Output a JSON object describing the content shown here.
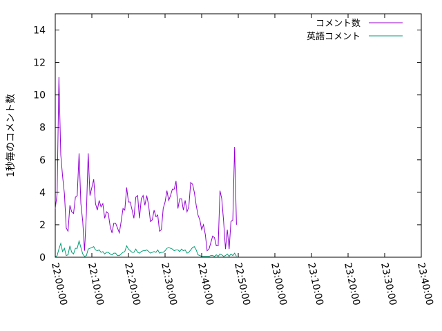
{
  "chart_data": {
    "type": "line",
    "title": "",
    "xlabel": "",
    "ylabel": "1秒毎のコメント数",
    "xlim": [
      "22:00:00",
      "23:40:00"
    ],
    "ylim": [
      0,
      15
    ],
    "grid": false,
    "legend_position": "top-right",
    "x_ticks": [
      "22:00:00",
      "22:10:00",
      "22:20:00",
      "22:30:00",
      "22:40:00",
      "22:50:00",
      "23:00:00",
      "23:10:00",
      "23:20:00",
      "23:30:00",
      "23:40:00"
    ],
    "y_ticks": [
      "0",
      "2",
      "4",
      "6",
      "8",
      "10",
      "12",
      "14"
    ],
    "series": [
      {
        "name": "コメント数",
        "color": "#9400d3",
        "points": [
          [
            "22:00:00",
            3.0
          ],
          [
            "22:00:30",
            3.9
          ],
          [
            "22:01:00",
            11.1
          ],
          [
            "22:01:30",
            6.3
          ],
          [
            "22:02:00",
            5.0
          ],
          [
            "22:02:30",
            3.9
          ],
          [
            "22:03:00",
            1.8
          ],
          [
            "22:03:30",
            1.6
          ],
          [
            "22:04:00",
            3.2
          ],
          [
            "22:04:30",
            2.8
          ],
          [
            "22:05:00",
            2.7
          ],
          [
            "22:05:30",
            3.7
          ],
          [
            "22:06:00",
            3.8
          ],
          [
            "22:06:30",
            6.4
          ],
          [
            "22:07:00",
            3.3
          ],
          [
            "22:07:30",
            2.2
          ],
          [
            "22:08:00",
            0.4
          ],
          [
            "22:08:30",
            2.7
          ],
          [
            "22:09:00",
            6.4
          ],
          [
            "22:09:30",
            3.8
          ],
          [
            "22:10:00",
            4.3
          ],
          [
            "22:10:30",
            4.8
          ],
          [
            "22:11:00",
            3.3
          ],
          [
            "22:11:30",
            2.9
          ],
          [
            "22:12:00",
            3.5
          ],
          [
            "22:12:30",
            3.1
          ],
          [
            "22:13:00",
            3.3
          ],
          [
            "22:13:30",
            2.4
          ],
          [
            "22:14:00",
            2.8
          ],
          [
            "22:14:30",
            2.7
          ],
          [
            "22:15:00",
            1.9
          ],
          [
            "22:15:30",
            1.5
          ],
          [
            "22:16:00",
            2.1
          ],
          [
            "22:16:30",
            2.1
          ],
          [
            "22:17:00",
            1.8
          ],
          [
            "22:17:30",
            1.5
          ],
          [
            "22:18:00",
            2.2
          ],
          [
            "22:18:30",
            3.0
          ],
          [
            "22:19:00",
            2.9
          ],
          [
            "22:19:30",
            4.3
          ],
          [
            "22:20:00",
            3.4
          ],
          [
            "22:20:30",
            3.4
          ],
          [
            "22:21:00",
            2.9
          ],
          [
            "22:21:30",
            2.4
          ],
          [
            "22:22:00",
            3.7
          ],
          [
            "22:22:30",
            3.8
          ],
          [
            "22:23:00",
            2.4
          ],
          [
            "22:23:30",
            3.6
          ],
          [
            "22:24:00",
            3.8
          ],
          [
            "22:24:30",
            3.2
          ],
          [
            "22:25:00",
            3.8
          ],
          [
            "22:25:30",
            3.2
          ],
          [
            "22:26:00",
            2.2
          ],
          [
            "22:26:30",
            2.3
          ],
          [
            "22:27:00",
            2.9
          ],
          [
            "22:27:30",
            2.5
          ],
          [
            "22:28:00",
            2.6
          ],
          [
            "22:28:30",
            1.6
          ],
          [
            "22:29:00",
            1.7
          ],
          [
            "22:29:30",
            3.0
          ],
          [
            "22:30:00",
            3.4
          ],
          [
            "22:30:30",
            4.1
          ],
          [
            "22:31:00",
            3.5
          ],
          [
            "22:31:30",
            3.8
          ],
          [
            "22:32:00",
            4.2
          ],
          [
            "22:32:30",
            4.2
          ],
          [
            "22:33:00",
            4.7
          ],
          [
            "22:33:30",
            3.0
          ],
          [
            "22:34:00",
            3.6
          ],
          [
            "22:34:30",
            3.6
          ],
          [
            "22:35:00",
            2.9
          ],
          [
            "22:35:30",
            3.5
          ],
          [
            "22:36:00",
            2.8
          ],
          [
            "22:36:30",
            3.1
          ],
          [
            "22:37:00",
            4.6
          ],
          [
            "22:37:30",
            4.5
          ],
          [
            "22:38:00",
            4.0
          ],
          [
            "22:38:30",
            3.2
          ],
          [
            "22:39:00",
            2.6
          ],
          [
            "22:39:30",
            2.3
          ],
          [
            "22:40:00",
            1.7
          ],
          [
            "22:40:30",
            2.0
          ],
          [
            "22:41:00",
            1.4
          ],
          [
            "22:41:30",
            0.4
          ],
          [
            "22:42:00",
            0.5
          ],
          [
            "22:42:30",
            0.9
          ],
          [
            "22:43:00",
            1.3
          ],
          [
            "22:43:30",
            1.2
          ],
          [
            "22:44:00",
            0.7
          ],
          [
            "22:44:30",
            0.7
          ],
          [
            "22:45:00",
            4.1
          ],
          [
            "22:45:30",
            3.6
          ],
          [
            "22:46:00",
            2.2
          ],
          [
            "22:46:30",
            0.5
          ],
          [
            "22:47:00",
            1.7
          ],
          [
            "22:47:30",
            0.5
          ],
          [
            "22:48:00",
            2.2
          ],
          [
            "22:48:30",
            2.3
          ],
          [
            "22:49:00",
            6.8
          ],
          [
            "22:49:30",
            2.0
          ]
        ]
      },
      {
        "name": "英語コメント",
        "color": "#009e73",
        "points": [
          [
            "22:00:00",
            0.0
          ],
          [
            "22:00:30",
            0.1
          ],
          [
            "22:01:00",
            0.5
          ],
          [
            "22:01:30",
            0.85
          ],
          [
            "22:02:00",
            0.35
          ],
          [
            "22:02:30",
            0.55
          ],
          [
            "22:03:00",
            0.1
          ],
          [
            "22:03:30",
            0.15
          ],
          [
            "22:04:00",
            0.7
          ],
          [
            "22:04:30",
            0.3
          ],
          [
            "22:05:00",
            0.2
          ],
          [
            "22:05:30",
            0.55
          ],
          [
            "22:06:00",
            0.55
          ],
          [
            "22:06:30",
            1.0
          ],
          [
            "22:07:00",
            0.6
          ],
          [
            "22:07:30",
            0.2
          ],
          [
            "22:08:00",
            0.05
          ],
          [
            "22:08:30",
            0.1
          ],
          [
            "22:09:00",
            0.5
          ],
          [
            "22:09:30",
            0.55
          ],
          [
            "22:10:00",
            0.6
          ],
          [
            "22:10:30",
            0.65
          ],
          [
            "22:11:00",
            0.45
          ],
          [
            "22:11:30",
            0.4
          ],
          [
            "22:12:00",
            0.45
          ],
          [
            "22:12:30",
            0.3
          ],
          [
            "22:13:00",
            0.35
          ],
          [
            "22:13:30",
            0.2
          ],
          [
            "22:14:00",
            0.3
          ],
          [
            "22:14:30",
            0.3
          ],
          [
            "22:15:00",
            0.2
          ],
          [
            "22:15:30",
            0.15
          ],
          [
            "22:16:00",
            0.25
          ],
          [
            "22:16:30",
            0.25
          ],
          [
            "22:17:00",
            0.1
          ],
          [
            "22:17:30",
            0.1
          ],
          [
            "22:18:00",
            0.2
          ],
          [
            "22:18:30",
            0.3
          ],
          [
            "22:19:00",
            0.35
          ],
          [
            "22:19:30",
            0.7
          ],
          [
            "22:20:00",
            0.5
          ],
          [
            "22:20:30",
            0.4
          ],
          [
            "22:21:00",
            0.3
          ],
          [
            "22:21:30",
            0.3
          ],
          [
            "22:22:00",
            0.5
          ],
          [
            "22:22:30",
            0.3
          ],
          [
            "22:23:00",
            0.25
          ],
          [
            "22:23:30",
            0.35
          ],
          [
            "22:24:00",
            0.4
          ],
          [
            "22:24:30",
            0.4
          ],
          [
            "22:25:00",
            0.45
          ],
          [
            "22:25:30",
            0.35
          ],
          [
            "22:26:00",
            0.25
          ],
          [
            "22:26:30",
            0.3
          ],
          [
            "22:27:00",
            0.35
          ],
          [
            "22:27:30",
            0.3
          ],
          [
            "22:28:00",
            0.45
          ],
          [
            "22:28:30",
            0.25
          ],
          [
            "22:29:00",
            0.3
          ],
          [
            "22:29:30",
            0.3
          ],
          [
            "22:30:00",
            0.4
          ],
          [
            "22:30:30",
            0.55
          ],
          [
            "22:31:00",
            0.6
          ],
          [
            "22:31:30",
            0.55
          ],
          [
            "22:32:00",
            0.5
          ],
          [
            "22:32:30",
            0.4
          ],
          [
            "22:33:00",
            0.45
          ],
          [
            "22:33:30",
            0.45
          ],
          [
            "22:34:00",
            0.35
          ],
          [
            "22:34:30",
            0.5
          ],
          [
            "22:35:00",
            0.4
          ],
          [
            "22:35:30",
            0.45
          ],
          [
            "22:36:00",
            0.25
          ],
          [
            "22:36:30",
            0.3
          ],
          [
            "22:37:00",
            0.45
          ],
          [
            "22:37:30",
            0.6
          ],
          [
            "22:38:00",
            0.65
          ],
          [
            "22:38:30",
            0.45
          ],
          [
            "22:39:00",
            0.15
          ],
          [
            "22:39:30",
            0.1
          ],
          [
            "22:40:00",
            0.05
          ],
          [
            "22:40:30",
            0.05
          ],
          [
            "22:41:00",
            0.05
          ],
          [
            "22:41:30",
            0.05
          ],
          [
            "22:42:00",
            0.05
          ],
          [
            "22:42:30",
            0.1
          ],
          [
            "22:43:00",
            0.1
          ],
          [
            "22:43:30",
            0.05
          ],
          [
            "22:44:00",
            0.15
          ],
          [
            "22:44:30",
            0.05
          ],
          [
            "22:45:00",
            0.2
          ],
          [
            "22:45:30",
            0.15
          ],
          [
            "22:46:00",
            0.05
          ],
          [
            "22:46:30",
            0.1
          ],
          [
            "22:47:00",
            0.2
          ],
          [
            "22:47:30",
            0.05
          ],
          [
            "22:48:00",
            0.2
          ],
          [
            "22:48:30",
            0.1
          ],
          [
            "22:49:00",
            0.25
          ],
          [
            "22:49:30",
            0.05
          ]
        ]
      }
    ]
  }
}
